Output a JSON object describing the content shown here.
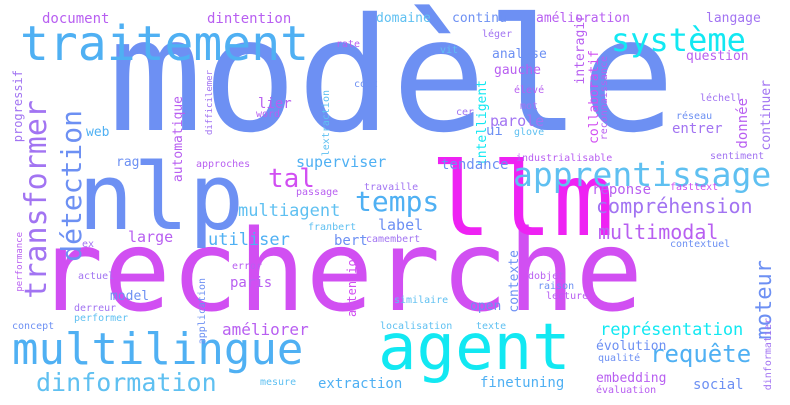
{
  "colors": {
    "blue": "#6d90f3",
    "magenta": "#ee22f3",
    "violet": "#b85ff1",
    "sky": "#4fb0f3",
    "cyan": "#12e8f2",
    "purple": "#a274f2",
    "orchid": "#d14ff2",
    "lightblue": "#5fc0f1"
  },
  "words": [
    {
      "text": "modèle"
    },
    {
      "text": "recherche"
    },
    {
      "text": "llm"
    },
    {
      "text": "nlp"
    },
    {
      "text": "agent"
    },
    {
      "text": "multilingue"
    },
    {
      "text": "traitement"
    },
    {
      "text": "apprentissage"
    },
    {
      "text": "système"
    },
    {
      "text": "transformer"
    },
    {
      "text": "détection"
    },
    {
      "text": "temps"
    },
    {
      "text": "tal"
    },
    {
      "text": "compréhension"
    },
    {
      "text": "multimodal"
    },
    {
      "text": "dinformation"
    },
    {
      "text": "requête"
    },
    {
      "text": "représentation"
    },
    {
      "text": "moteur"
    },
    {
      "text": "superviser"
    },
    {
      "text": "multiagent"
    },
    {
      "text": "large"
    },
    {
      "text": "utiliser"
    },
    {
      "text": "label"
    },
    {
      "text": "bert"
    },
    {
      "text": "paris"
    },
    {
      "text": "model"
    },
    {
      "text": "améliorer"
    },
    {
      "text": "document"
    },
    {
      "text": "dintention"
    },
    {
      "text": "domaine"
    },
    {
      "text": "continu"
    },
    {
      "text": "amélioration"
    },
    {
      "text": "langage"
    },
    {
      "text": "question"
    },
    {
      "text": "analyse"
    },
    {
      "text": "gauche"
    },
    {
      "text": "intelligent"
    },
    {
      "text": "parole"
    },
    {
      "text": "ui"
    },
    {
      "text": "web"
    },
    {
      "text": "rag"
    },
    {
      "text": "lier"
    },
    {
      "text": "automatique"
    },
    {
      "text": "progressif"
    },
    {
      "text": "tendance"
    },
    {
      "text": "réponse"
    },
    {
      "text": "donnée"
    },
    {
      "text": "entrer"
    },
    {
      "text": "continuer"
    },
    {
      "text": "interagir"
    },
    {
      "text": "collaboratif"
    },
    {
      "text": "reconnaissance"
    },
    {
      "text": "léchell"
    },
    {
      "text": "réseau"
    },
    {
      "text": "contexte"
    },
    {
      "text": "attention"
    },
    {
      "text": "open"
    },
    {
      "text": "évolution"
    },
    {
      "text": "embedding"
    },
    {
      "text": "finetuning"
    },
    {
      "text": "extraction"
    },
    {
      "text": "social"
    },
    {
      "text": "localisation"
    },
    {
      "text": "texte"
    },
    {
      "text": "lecture"
    },
    {
      "text": "similaire"
    },
    {
      "text": "raison"
    },
    {
      "text": "dobjet"
    },
    {
      "text": "camembert"
    },
    {
      "text": "frалbert"
    },
    {
      "text": "passage"
    },
    {
      "text": "travaille"
    },
    {
      "text": "approches"
    },
    {
      "text": "application"
    },
    {
      "text": "derreur"
    },
    {
      "text": "performer"
    },
    {
      "text": "concept"
    },
    {
      "text": "actuel"
    },
    {
      "text": "ex"
    },
    {
      "text": "performance"
    },
    {
      "text": "error"
    },
    {
      "text": "mesure"
    },
    {
      "text": "évaluation"
    },
    {
      "text": "qualité"
    },
    {
      "text": "dinformatier"
    },
    {
      "text": "contextuel"
    },
    {
      "text": "fasttext"
    },
    {
      "text": "sentiment"
    },
    {
      "text": "industrialisable"
    },
    {
      "text": "glove"
    },
    {
      "text": "élevé"
    },
    {
      "text": "mot"
    },
    {
      "text": "cer"
    },
    {
      "text": "coût"
    },
    {
      "text": "lextraction"
    },
    {
      "text": "word"
    },
    {
      "text": "difficilemer"
    },
    {
      "text": "rate"
    },
    {
      "text": "léger"
    },
    {
      "text": "vit"
    }
  ]
}
